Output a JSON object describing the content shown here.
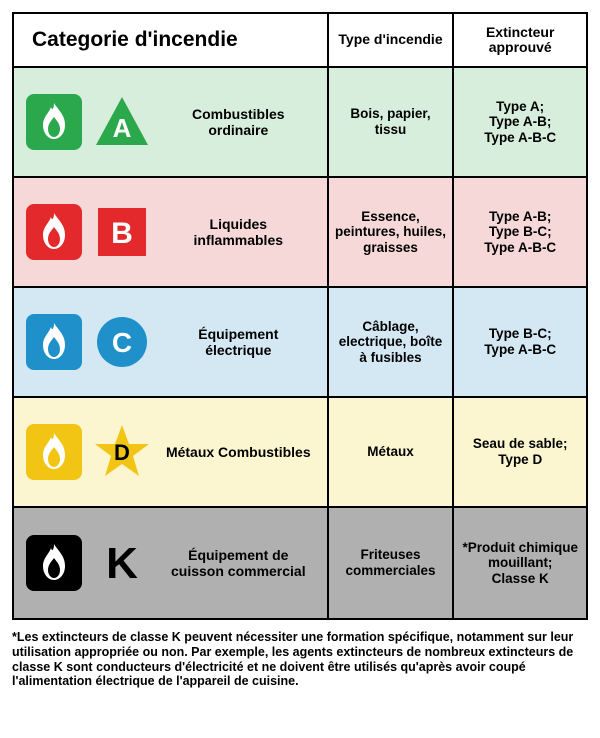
{
  "header": {
    "category": "Categorie d'incendie",
    "type": "Type d'incendie",
    "ext": "Extincteur approuvé"
  },
  "rows": [
    {
      "bg": "#d8eedc",
      "accent": "#2ca84c",
      "letter": "A",
      "letter_color": "#ffffff",
      "shape": "triangle",
      "label": "Combustibles ordinaire",
      "type": "Bois, papier, tissu",
      "ext": "Type A;\nType A-B;\nType A-B-C"
    },
    {
      "bg": "#f6d8d8",
      "accent": "#e3292b",
      "letter": "B",
      "letter_color": "#ffffff",
      "shape": "square",
      "label": "Liquides inflammables",
      "type": "Essence, peintures, huiles, graisses",
      "ext": "Type A-B;\nType B-C;\nType A-B-C"
    },
    {
      "bg": "#d3e8f3",
      "accent": "#1f90c9",
      "letter": "C",
      "letter_color": "#ffffff",
      "shape": "circle",
      "label": "Équipement électrique",
      "type": "Câblage, electrique, boîte à fusibles",
      "ext": "Type B-C;\nType A-B-C"
    },
    {
      "bg": "#fbf6cf",
      "accent": "#f2c515",
      "letter": "D",
      "letter_color": "#000000",
      "shape": "star",
      "label": "Métaux Combustibles",
      "type": "Métaux",
      "ext": "Seau de sable;\nType D"
    },
    {
      "bg": "#b0b0b0",
      "accent": "#000000",
      "letter": "K",
      "letter_color": "#000000",
      "shape": "letter",
      "label": "Équipement de cuisson commercial",
      "type": "Friteuses commerciales",
      "ext": "*Produit chimique mouillant;\nClasse K"
    }
  ],
  "footnote": "*Les extincteurs de classe K peuvent nécessiter une formation spécifique, notamment sur leur utilisation appropriée ou non. Par exemple, les agents extincteurs de nombreux extincteurs de classe K sont conducteurs d'électricité et ne doivent être utilisés qu'après avoir coupé l'alimentation électrique de l'appareil de cuisine."
}
